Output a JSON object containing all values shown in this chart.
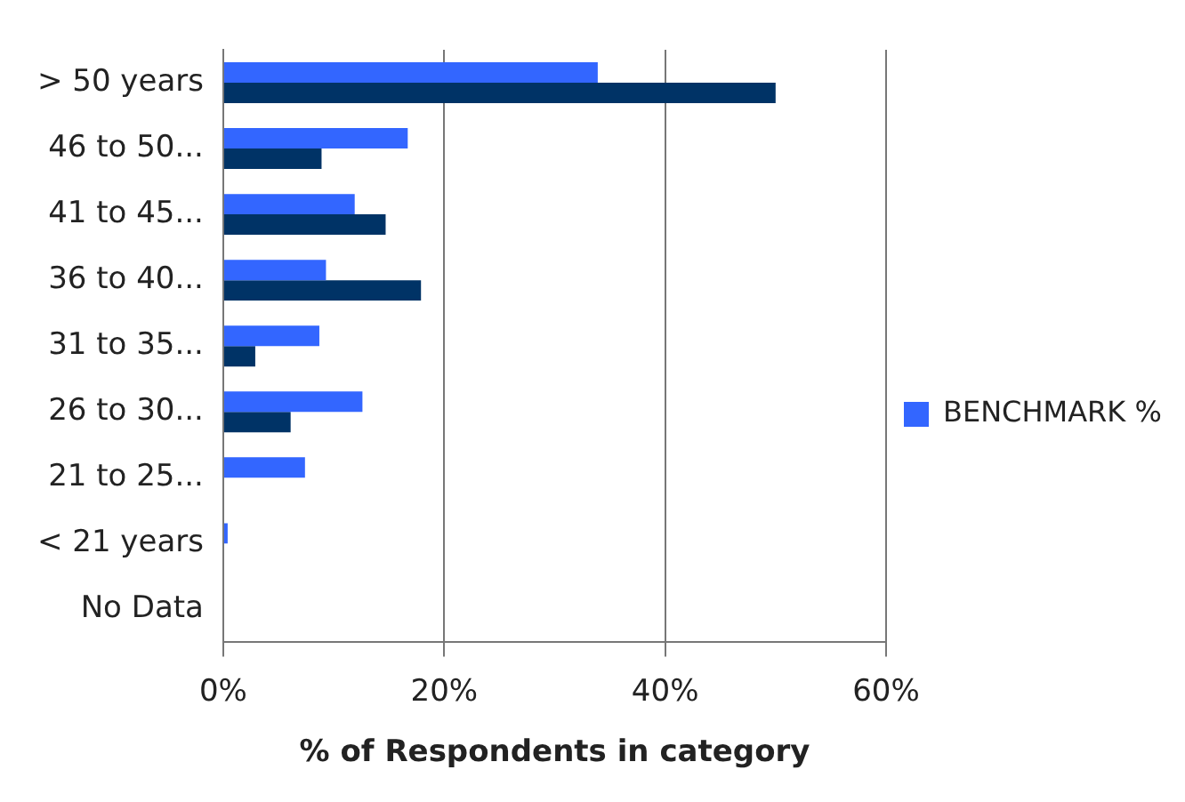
{
  "chart_data": {
    "type": "bar",
    "orientation": "horizontal",
    "xlabel": "% of Respondents in category",
    "categories": [
      "> 50 years",
      "46 to 50...",
      "41 to 45...",
      "36 to 40...",
      "31 to 35...",
      "26 to 30...",
      "21 to 25...",
      "< 21 years",
      "No Data"
    ],
    "series": [
      {
        "name": "BENCHMARK %",
        "color": "#3366ff",
        "values": [
          33.9,
          16.7,
          11.9,
          9.3,
          8.7,
          12.6,
          7.4,
          0.4,
          0
        ]
      },
      {
        "color": "#003366",
        "values": [
          50,
          8.9,
          14.7,
          17.9,
          2.9,
          6.1,
          0,
          0,
          0
        ]
      }
    ],
    "xlim": [
      0,
      60
    ],
    "xticks": [
      {
        "value": 0,
        "label": "0%"
      },
      {
        "value": 20,
        "label": "20%"
      },
      {
        "value": 40,
        "label": "40%"
      },
      {
        "value": 60,
        "label": "60%"
      }
    ],
    "grid": "x",
    "legend": "right"
  }
}
